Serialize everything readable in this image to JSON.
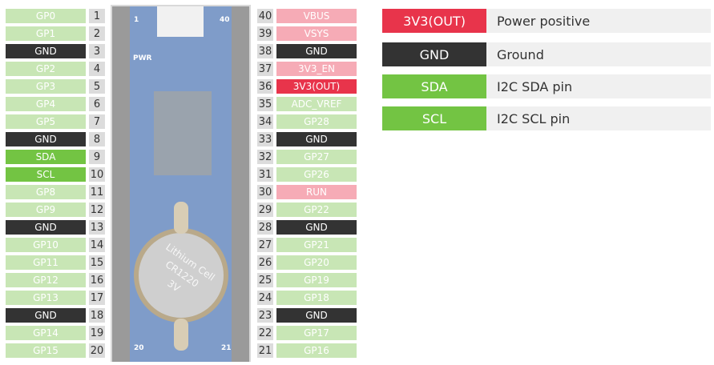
{
  "colors": {
    "gpio": "#c8e6b5",
    "gnd": "#333333",
    "i2c": "#73c443",
    "power": "#f6abb6",
    "power_out": "#e8344b"
  },
  "left_pins": [
    {
      "n": "1",
      "label": "GP0",
      "type": "gpio"
    },
    {
      "n": "2",
      "label": "GP1",
      "type": "gpio"
    },
    {
      "n": "3",
      "label": "GND",
      "type": "gnd"
    },
    {
      "n": "4",
      "label": "GP2",
      "type": "gpio"
    },
    {
      "n": "5",
      "label": "GP3",
      "type": "gpio"
    },
    {
      "n": "6",
      "label": "GP4",
      "type": "gpio"
    },
    {
      "n": "7",
      "label": "GP5",
      "type": "gpio"
    },
    {
      "n": "8",
      "label": "GND",
      "type": "gnd"
    },
    {
      "n": "9",
      "label": "SDA",
      "type": "i2c"
    },
    {
      "n": "10",
      "label": "SCL",
      "type": "i2c"
    },
    {
      "n": "11",
      "label": "GP8",
      "type": "gpio"
    },
    {
      "n": "12",
      "label": "GP9",
      "type": "gpio"
    },
    {
      "n": "13",
      "label": "GND",
      "type": "gnd"
    },
    {
      "n": "14",
      "label": "GP10",
      "type": "gpio"
    },
    {
      "n": "15",
      "label": "GP11",
      "type": "gpio"
    },
    {
      "n": "16",
      "label": "GP12",
      "type": "gpio"
    },
    {
      "n": "17",
      "label": "GP13",
      "type": "gpio"
    },
    {
      "n": "18",
      "label": "GND",
      "type": "gnd"
    },
    {
      "n": "19",
      "label": "GP14",
      "type": "gpio"
    },
    {
      "n": "20",
      "label": "GP15",
      "type": "gpio"
    }
  ],
  "right_pins": [
    {
      "n": "40",
      "label": "VBUS",
      "type": "power"
    },
    {
      "n": "39",
      "label": "VSYS",
      "type": "power"
    },
    {
      "n": "38",
      "label": "GND",
      "type": "gnd"
    },
    {
      "n": "37",
      "label": "3V3_EN",
      "type": "power"
    },
    {
      "n": "36",
      "label": "3V3(OUT)",
      "type": "power_out"
    },
    {
      "n": "35",
      "label": "ADC_VREF",
      "type": "gpio"
    },
    {
      "n": "34",
      "label": "GP28",
      "type": "gpio"
    },
    {
      "n": "33",
      "label": "GND",
      "type": "gnd"
    },
    {
      "n": "32",
      "label": "GP27",
      "type": "gpio"
    },
    {
      "n": "31",
      "label": "GP26",
      "type": "gpio"
    },
    {
      "n": "30",
      "label": "RUN",
      "type": "power"
    },
    {
      "n": "29",
      "label": "GP22",
      "type": "gpio"
    },
    {
      "n": "28",
      "label": "GND",
      "type": "gnd"
    },
    {
      "n": "27",
      "label": "GP21",
      "type": "gpio"
    },
    {
      "n": "26",
      "label": "GP20",
      "type": "gpio"
    },
    {
      "n": "25",
      "label": "GP19",
      "type": "gpio"
    },
    {
      "n": "24",
      "label": "GP18",
      "type": "gpio"
    },
    {
      "n": "23",
      "label": "GND",
      "type": "gnd"
    },
    {
      "n": "22",
      "label": "GP17",
      "type": "gpio"
    },
    {
      "n": "21",
      "label": "GP16",
      "type": "gpio"
    }
  ],
  "board": {
    "pin1": "1",
    "pin40": "40",
    "pin20": "20",
    "pin21": "21",
    "pwr": "PWR",
    "battery": [
      "Lithium Cell",
      "CR1220",
      "3V"
    ]
  },
  "legend": [
    {
      "label": "3V3(OUT)",
      "desc": "Power positive",
      "type": "power_out"
    },
    {
      "label": "GND",
      "desc": "Ground",
      "type": "gnd"
    },
    {
      "label": "SDA",
      "desc": "I2C SDA pin",
      "type": "i2c"
    },
    {
      "label": "SCL",
      "desc": "I2C SCL pin",
      "type": "i2c"
    }
  ]
}
